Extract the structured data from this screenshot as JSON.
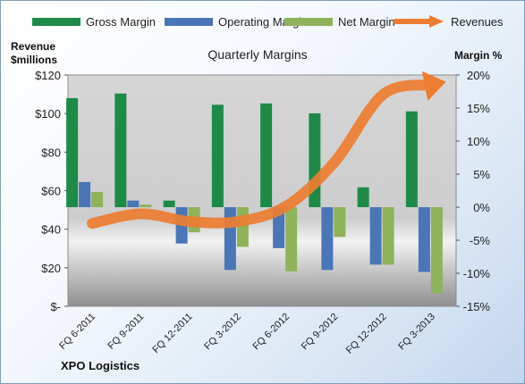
{
  "chart_data": {
    "type": "bar",
    "title": "Quarterly Margins",
    "source_label": "XPO Logistics",
    "left_axis": {
      "label_line1": "Revenue",
      "label_line2": "$millions",
      "min": 0,
      "max": 120,
      "step": 20,
      "tick_labels": [
        "$-",
        "$20",
        "$40",
        "$60",
        "$80",
        "$100",
        "$120"
      ]
    },
    "right_axis": {
      "label": "Margin %",
      "min": -15,
      "max": 20,
      "step": 5,
      "tick_labels": [
        "-15%",
        "-10%",
        "-5%",
        "0%",
        "5%",
        "10%",
        "15%",
        "20%"
      ]
    },
    "categories": [
      "FQ 6-2011",
      "FQ 9-2011",
      "FQ 12-2011",
      "FQ 3-2012",
      "FQ 6-2012",
      "FQ 9-2012",
      "FQ 12-2012",
      "FQ 3-2013"
    ],
    "series": [
      {
        "name": "Gross Margin",
        "type": "bar",
        "axis": "right",
        "color": "#1e8a48",
        "values": [
          16.5,
          17.2,
          1.0,
          15.5,
          15.7,
          14.2,
          3.0,
          14.5
        ]
      },
      {
        "name": "Operating Margin",
        "type": "bar",
        "axis": "right",
        "color": "#4a76b8",
        "values": [
          3.8,
          1.0,
          -5.5,
          -9.5,
          -6.2,
          -9.5,
          -8.7,
          -9.8
        ]
      },
      {
        "name": "Net Margin",
        "type": "bar",
        "axis": "right",
        "color": "#8eb35a",
        "values": [
          2.3,
          0.4,
          -3.8,
          -6.0,
          -9.7,
          -4.5,
          -8.7,
          -13.0
        ]
      },
      {
        "name": "Revenues",
        "type": "line-arrow",
        "axis": "left",
        "color": "#ed7d31",
        "values": [
          43,
          48,
          44,
          44,
          52,
          75,
          110,
          115
        ]
      }
    ],
    "legend_position": "top",
    "grid": false
  }
}
